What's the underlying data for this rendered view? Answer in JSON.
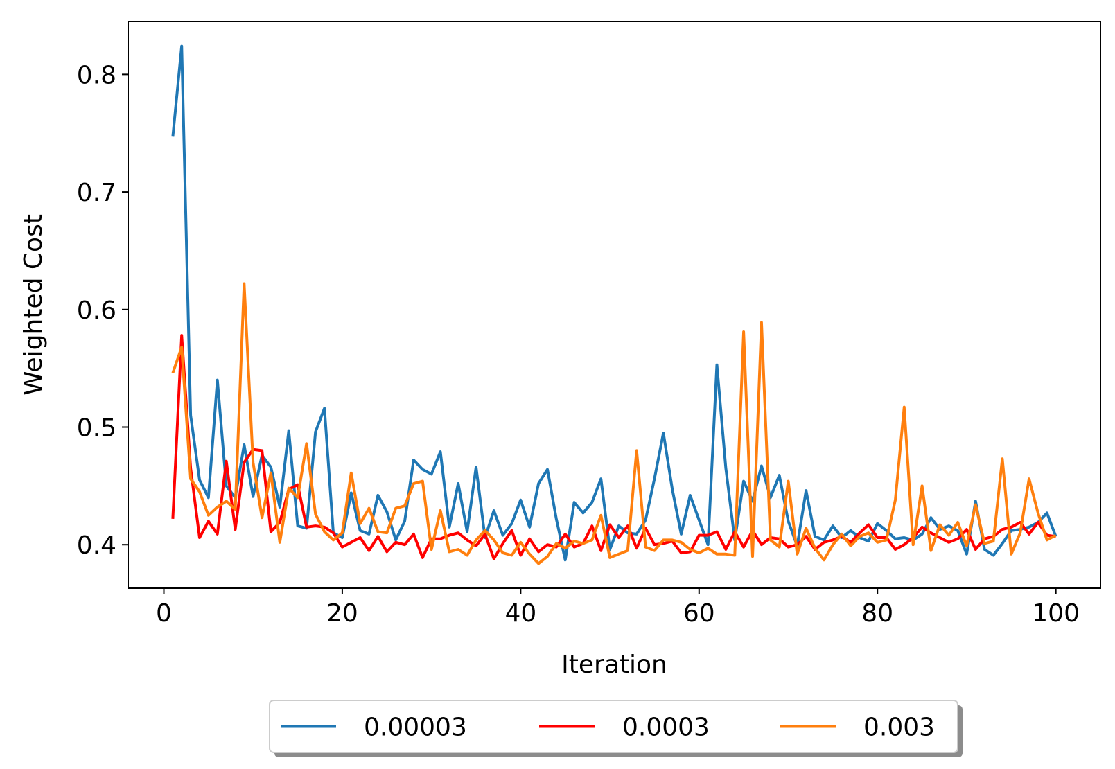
{
  "chart_data": {
    "type": "line",
    "title": "",
    "xlabel": "Iteration",
    "ylabel": "Weighted Cost",
    "xlim": [
      -4,
      105
    ],
    "ylim": [
      0.363,
      0.845
    ],
    "xticks": [
      0,
      20,
      40,
      60,
      80,
      100
    ],
    "xtick_labels": [
      "0",
      "20",
      "40",
      "60",
      "80",
      "100"
    ],
    "yticks": [
      0.4,
      0.5,
      0.6,
      0.7,
      0.8
    ],
    "ytick_labels": [
      "0.4",
      "0.5",
      "0.6",
      "0.7",
      "0.8"
    ],
    "grid": false,
    "legend_placement": "below plot, centered, 3 columns, shadowed",
    "x": [
      1,
      2,
      3,
      4,
      5,
      6,
      7,
      8,
      9,
      10,
      11,
      12,
      13,
      14,
      15,
      16,
      17,
      18,
      19,
      20,
      21,
      22,
      23,
      24,
      25,
      26,
      27,
      28,
      29,
      30,
      31,
      32,
      33,
      34,
      35,
      36,
      37,
      38,
      39,
      40,
      41,
      42,
      43,
      44,
      45,
      46,
      47,
      48,
      49,
      50,
      51,
      52,
      53,
      54,
      55,
      56,
      57,
      58,
      59,
      60,
      61,
      62,
      63,
      64,
      65,
      66,
      67,
      68,
      69,
      70,
      71,
      72,
      73,
      74,
      75,
      76,
      77,
      78,
      79,
      80,
      81,
      82,
      83,
      84,
      85,
      86,
      87,
      88,
      89,
      90,
      91,
      92,
      93,
      94,
      95,
      96,
      97,
      98,
      99,
      100
    ],
    "series": [
      {
        "name": "0.00003",
        "color": "#1f77b4",
        "values": [
          0.747,
          0.824,
          0.51,
          0.455,
          0.44,
          0.54,
          0.45,
          0.44,
          0.485,
          0.441,
          0.476,
          0.466,
          0.432,
          0.497,
          0.416,
          0.414,
          0.496,
          0.516,
          0.41,
          0.406,
          0.444,
          0.412,
          0.409,
          0.442,
          0.428,
          0.404,
          0.42,
          0.472,
          0.464,
          0.46,
          0.479,
          0.415,
          0.452,
          0.411,
          0.466,
          0.406,
          0.429,
          0.408,
          0.418,
          0.438,
          0.415,
          0.452,
          0.464,
          0.422,
          0.387,
          0.436,
          0.427,
          0.436,
          0.456,
          0.396,
          0.416,
          0.41,
          0.409,
          0.421,
          0.456,
          0.495,
          0.447,
          0.409,
          0.442,
          0.421,
          0.4,
          0.553,
          0.465,
          0.404,
          0.454,
          0.437,
          0.467,
          0.44,
          0.459,
          0.42,
          0.399,
          0.446,
          0.407,
          0.404,
          0.416,
          0.406,
          0.412,
          0.406,
          0.403,
          0.418,
          0.412,
          0.405,
          0.406,
          0.404,
          0.409,
          0.423,
          0.413,
          0.416,
          0.412,
          0.392,
          0.437,
          0.396,
          0.391,
          0.401,
          0.412,
          0.413,
          0.415,
          0.419,
          0.427,
          0.407
        ]
      },
      {
        "name": "0.0003",
        "color": "#ff0000",
        "values": [
          0.422,
          0.578,
          0.465,
          0.406,
          0.42,
          0.409,
          0.471,
          0.413,
          0.47,
          0.481,
          0.48,
          0.411,
          0.419,
          0.447,
          0.451,
          0.415,
          0.416,
          0.415,
          0.41,
          0.398,
          0.402,
          0.406,
          0.395,
          0.407,
          0.394,
          0.402,
          0.4,
          0.409,
          0.389,
          0.405,
          0.405,
          0.408,
          0.41,
          0.404,
          0.399,
          0.409,
          0.388,
          0.401,
          0.412,
          0.391,
          0.405,
          0.394,
          0.4,
          0.398,
          0.409,
          0.398,
          0.401,
          0.416,
          0.395,
          0.417,
          0.406,
          0.416,
          0.397,
          0.414,
          0.4,
          0.401,
          0.403,
          0.393,
          0.394,
          0.408,
          0.408,
          0.411,
          0.396,
          0.411,
          0.398,
          0.412,
          0.4,
          0.406,
          0.405,
          0.398,
          0.4,
          0.407,
          0.396,
          0.402,
          0.404,
          0.407,
          0.402,
          0.41,
          0.417,
          0.406,
          0.406,
          0.396,
          0.4,
          0.406,
          0.415,
          0.41,
          0.406,
          0.402,
          0.405,
          0.413,
          0.396,
          0.405,
          0.407,
          0.413,
          0.415,
          0.419,
          0.409,
          0.419,
          0.408,
          0.407
        ]
      },
      {
        "name": "0.003",
        "color": "#ff7f0e",
        "values": [
          0.546,
          0.568,
          0.456,
          0.445,
          0.425,
          0.432,
          0.437,
          0.43,
          0.622,
          0.47,
          0.423,
          0.461,
          0.402,
          0.448,
          0.44,
          0.486,
          0.426,
          0.411,
          0.404,
          0.41,
          0.461,
          0.418,
          0.431,
          0.411,
          0.41,
          0.431,
          0.433,
          0.452,
          0.454,
          0.396,
          0.429,
          0.394,
          0.396,
          0.391,
          0.404,
          0.412,
          0.404,
          0.393,
          0.391,
          0.402,
          0.392,
          0.384,
          0.39,
          0.401,
          0.397,
          0.403,
          0.401,
          0.404,
          0.425,
          0.389,
          0.392,
          0.395,
          0.48,
          0.398,
          0.395,
          0.404,
          0.404,
          0.402,
          0.396,
          0.393,
          0.397,
          0.392,
          0.392,
          0.391,
          0.581,
          0.39,
          0.589,
          0.404,
          0.398,
          0.454,
          0.392,
          0.414,
          0.397,
          0.387,
          0.4,
          0.409,
          0.399,
          0.407,
          0.41,
          0.402,
          0.404,
          0.438,
          0.517,
          0.4,
          0.45,
          0.395,
          0.417,
          0.408,
          0.419,
          0.399,
          0.434,
          0.401,
          0.403,
          0.473,
          0.392,
          0.41,
          0.456,
          0.427,
          0.404,
          0.408
        ]
      }
    ]
  }
}
